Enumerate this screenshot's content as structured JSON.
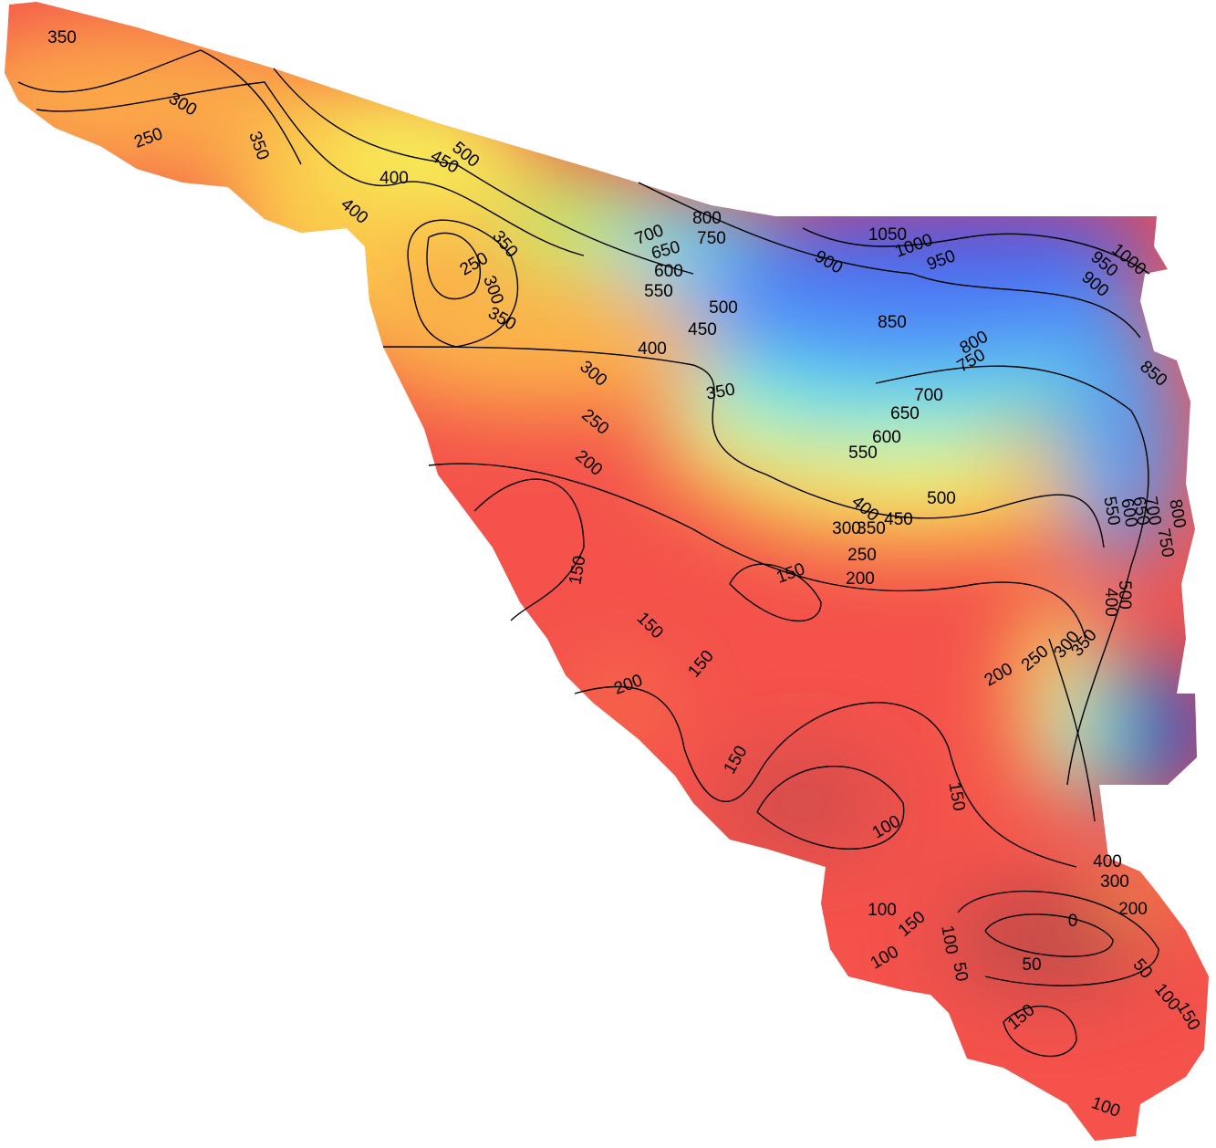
{
  "map": {
    "contour_labels": [
      350,
      300,
      250,
      350,
      400,
      400,
      500,
      450,
      350,
      250,
      300,
      350,
      800,
      750,
      700,
      650,
      600,
      550,
      500,
      450,
      400,
      1050,
      1000,
      950,
      900,
      850,
      800,
      750,
      700,
      650,
      600,
      550,
      1000,
      950,
      900,
      850,
      350,
      300,
      250,
      200,
      500,
      450,
      400,
      350,
      300,
      250,
      200,
      150,
      150,
      150,
      150,
      200,
      150,
      100,
      150,
      200,
      250,
      300,
      350,
      400,
      500,
      550,
      600,
      650,
      700,
      750,
      800,
      100,
      150,
      100,
      100,
      50,
      0,
      50,
      50,
      100,
      150,
      150,
      100,
      400,
      300,
      200
    ]
  }
}
